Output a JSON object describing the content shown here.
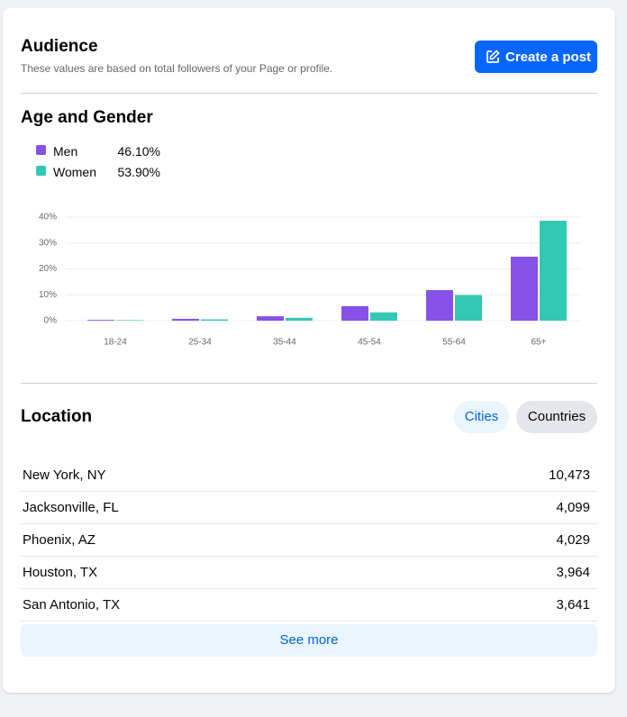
{
  "header": {
    "title": "Audience",
    "subtitle": "These values are based on total followers of your Page or profile.",
    "button": "Create a post"
  },
  "chart_data": {
    "type": "bar",
    "title": "Age and Gender",
    "categories": [
      "18-24",
      "25-34",
      "35-44",
      "45-54",
      "55-64",
      "65+"
    ],
    "series": [
      {
        "name": "Men",
        "share": "46.10%",
        "color": "#8750e6",
        "values": [
          0.3,
          0.7,
          1.7,
          5.6,
          11.8,
          24.7
        ]
      },
      {
        "name": "Women",
        "share": "53.90%",
        "color": "#33c8b4",
        "values": [
          0.2,
          0.5,
          1.1,
          3.2,
          9.9,
          38.6
        ]
      }
    ],
    "ylim": [
      0,
      40
    ],
    "yticks": [
      {
        "value": 0,
        "label": "0%"
      },
      {
        "value": 10,
        "label": "10%"
      },
      {
        "value": 20,
        "label": "20%"
      },
      {
        "value": 30,
        "label": "30%"
      },
      {
        "value": 40,
        "label": "40%"
      }
    ],
    "grid": true
  },
  "location": {
    "title": "Location",
    "tabs": [
      "Cities",
      "Countries"
    ],
    "rows": [
      [
        "New York, NY",
        "10,473"
      ],
      [
        "Jacksonville, FL",
        "4,099"
      ],
      [
        "Phoenix, AZ",
        "4,029"
      ],
      [
        "Houston, TX",
        "3,964"
      ],
      [
        "San Antonio, TX",
        "3,641"
      ]
    ],
    "see_more": "See more"
  }
}
